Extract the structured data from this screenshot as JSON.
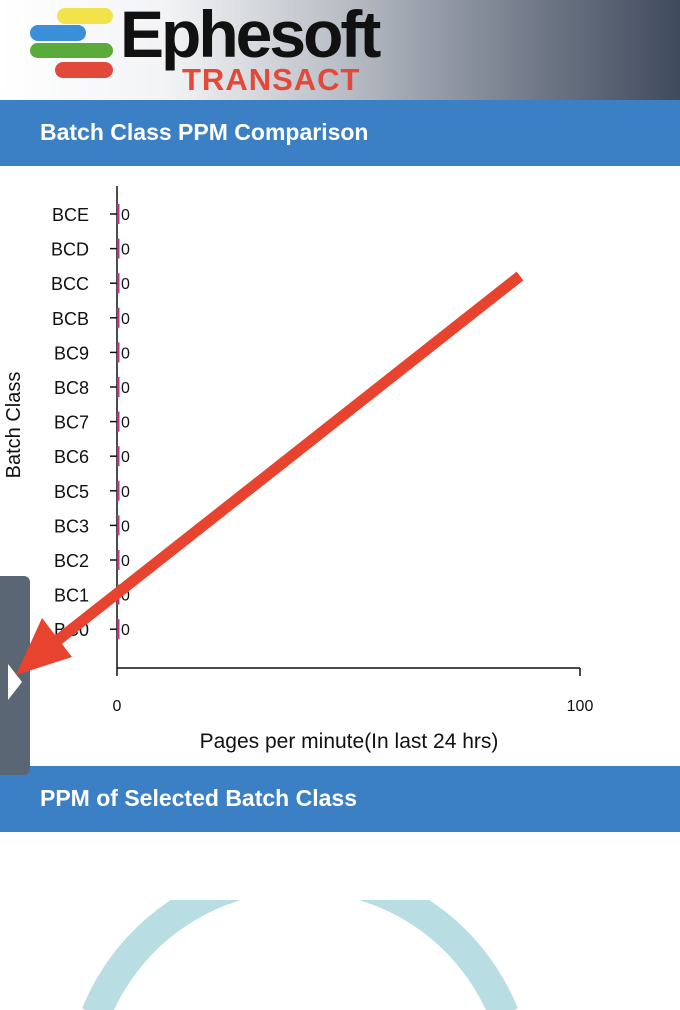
{
  "header": {
    "logo_word": "Ephesoft",
    "logo_sub": "TRANSACT",
    "logo_colors": [
      "#f2e34a",
      "#3a8fd8",
      "#5aaa3c",
      "#e2493a"
    ]
  },
  "section1": {
    "title": "Batch Class PPM Comparison"
  },
  "section2": {
    "title": "PPM of Selected Batch Class"
  },
  "chart_data": {
    "type": "bar",
    "orientation": "horizontal",
    "categories": [
      "BCE",
      "BCD",
      "BCC",
      "BCB",
      "BC9",
      "BC8",
      "BC7",
      "BC6",
      "BC5",
      "BC3",
      "BC2",
      "BC1",
      "BC0"
    ],
    "values": [
      0,
      0,
      0,
      0,
      0,
      0,
      0,
      0,
      0,
      0,
      0,
      0,
      0
    ],
    "data_labels": [
      "0",
      "0",
      "0",
      "0",
      "0",
      "0",
      "0",
      "0",
      "0",
      "0",
      "0",
      "0",
      "0"
    ],
    "xlabel": "Pages per minute(In last 24 hrs)",
    "ylabel": "Batch Class",
    "xlim": [
      0,
      100
    ],
    "xticks": [
      "0",
      "100"
    ],
    "bar_color": "#c0327f",
    "grid": false,
    "legend": "none"
  },
  "annotation": {
    "arrow_color": "#e8432f"
  },
  "gauge": {
    "color": "#b8dde2"
  },
  "side_tab": {
    "icon": "chevron-right-icon",
    "color": "#5b6675"
  }
}
